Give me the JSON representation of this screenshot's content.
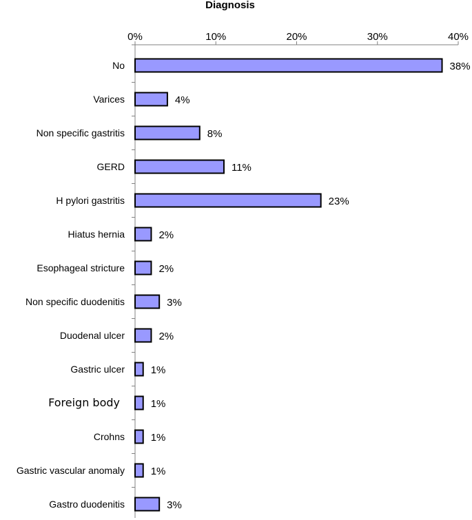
{
  "chart_data": {
    "type": "bar",
    "orientation": "horizontal",
    "title": "Diagnosis",
    "categories": [
      "No",
      "Varices",
      "Non specific gastritis",
      "GERD",
      "H pylori gastritis",
      "Hiatus hernia",
      "Esophageal stricture",
      "Non specific duodenitis",
      "Duodenal ulcer",
      "Gastric ulcer",
      "Foreign body",
      "Crohns",
      "Gastric vascular anomaly",
      "Gastro duodenitis"
    ],
    "values": [
      38,
      4,
      8,
      11,
      23,
      2,
      2,
      3,
      2,
      1,
      1,
      1,
      1,
      3
    ],
    "data_labels": [
      "38%",
      "4%",
      "8%",
      "11%",
      "23%",
      "2%",
      "2%",
      "3%",
      "2%",
      "1%",
      "1%",
      "1%",
      "1%",
      "3%"
    ],
    "xlim": [
      0,
      40
    ],
    "xticks": [
      "0%",
      "10%",
      "20%",
      "30%",
      "40%"
    ],
    "x_axis_position": "top",
    "grid": false,
    "legend": "none",
    "bar_color": "#9999FF",
    "bar_edge_color": "#000000"
  }
}
